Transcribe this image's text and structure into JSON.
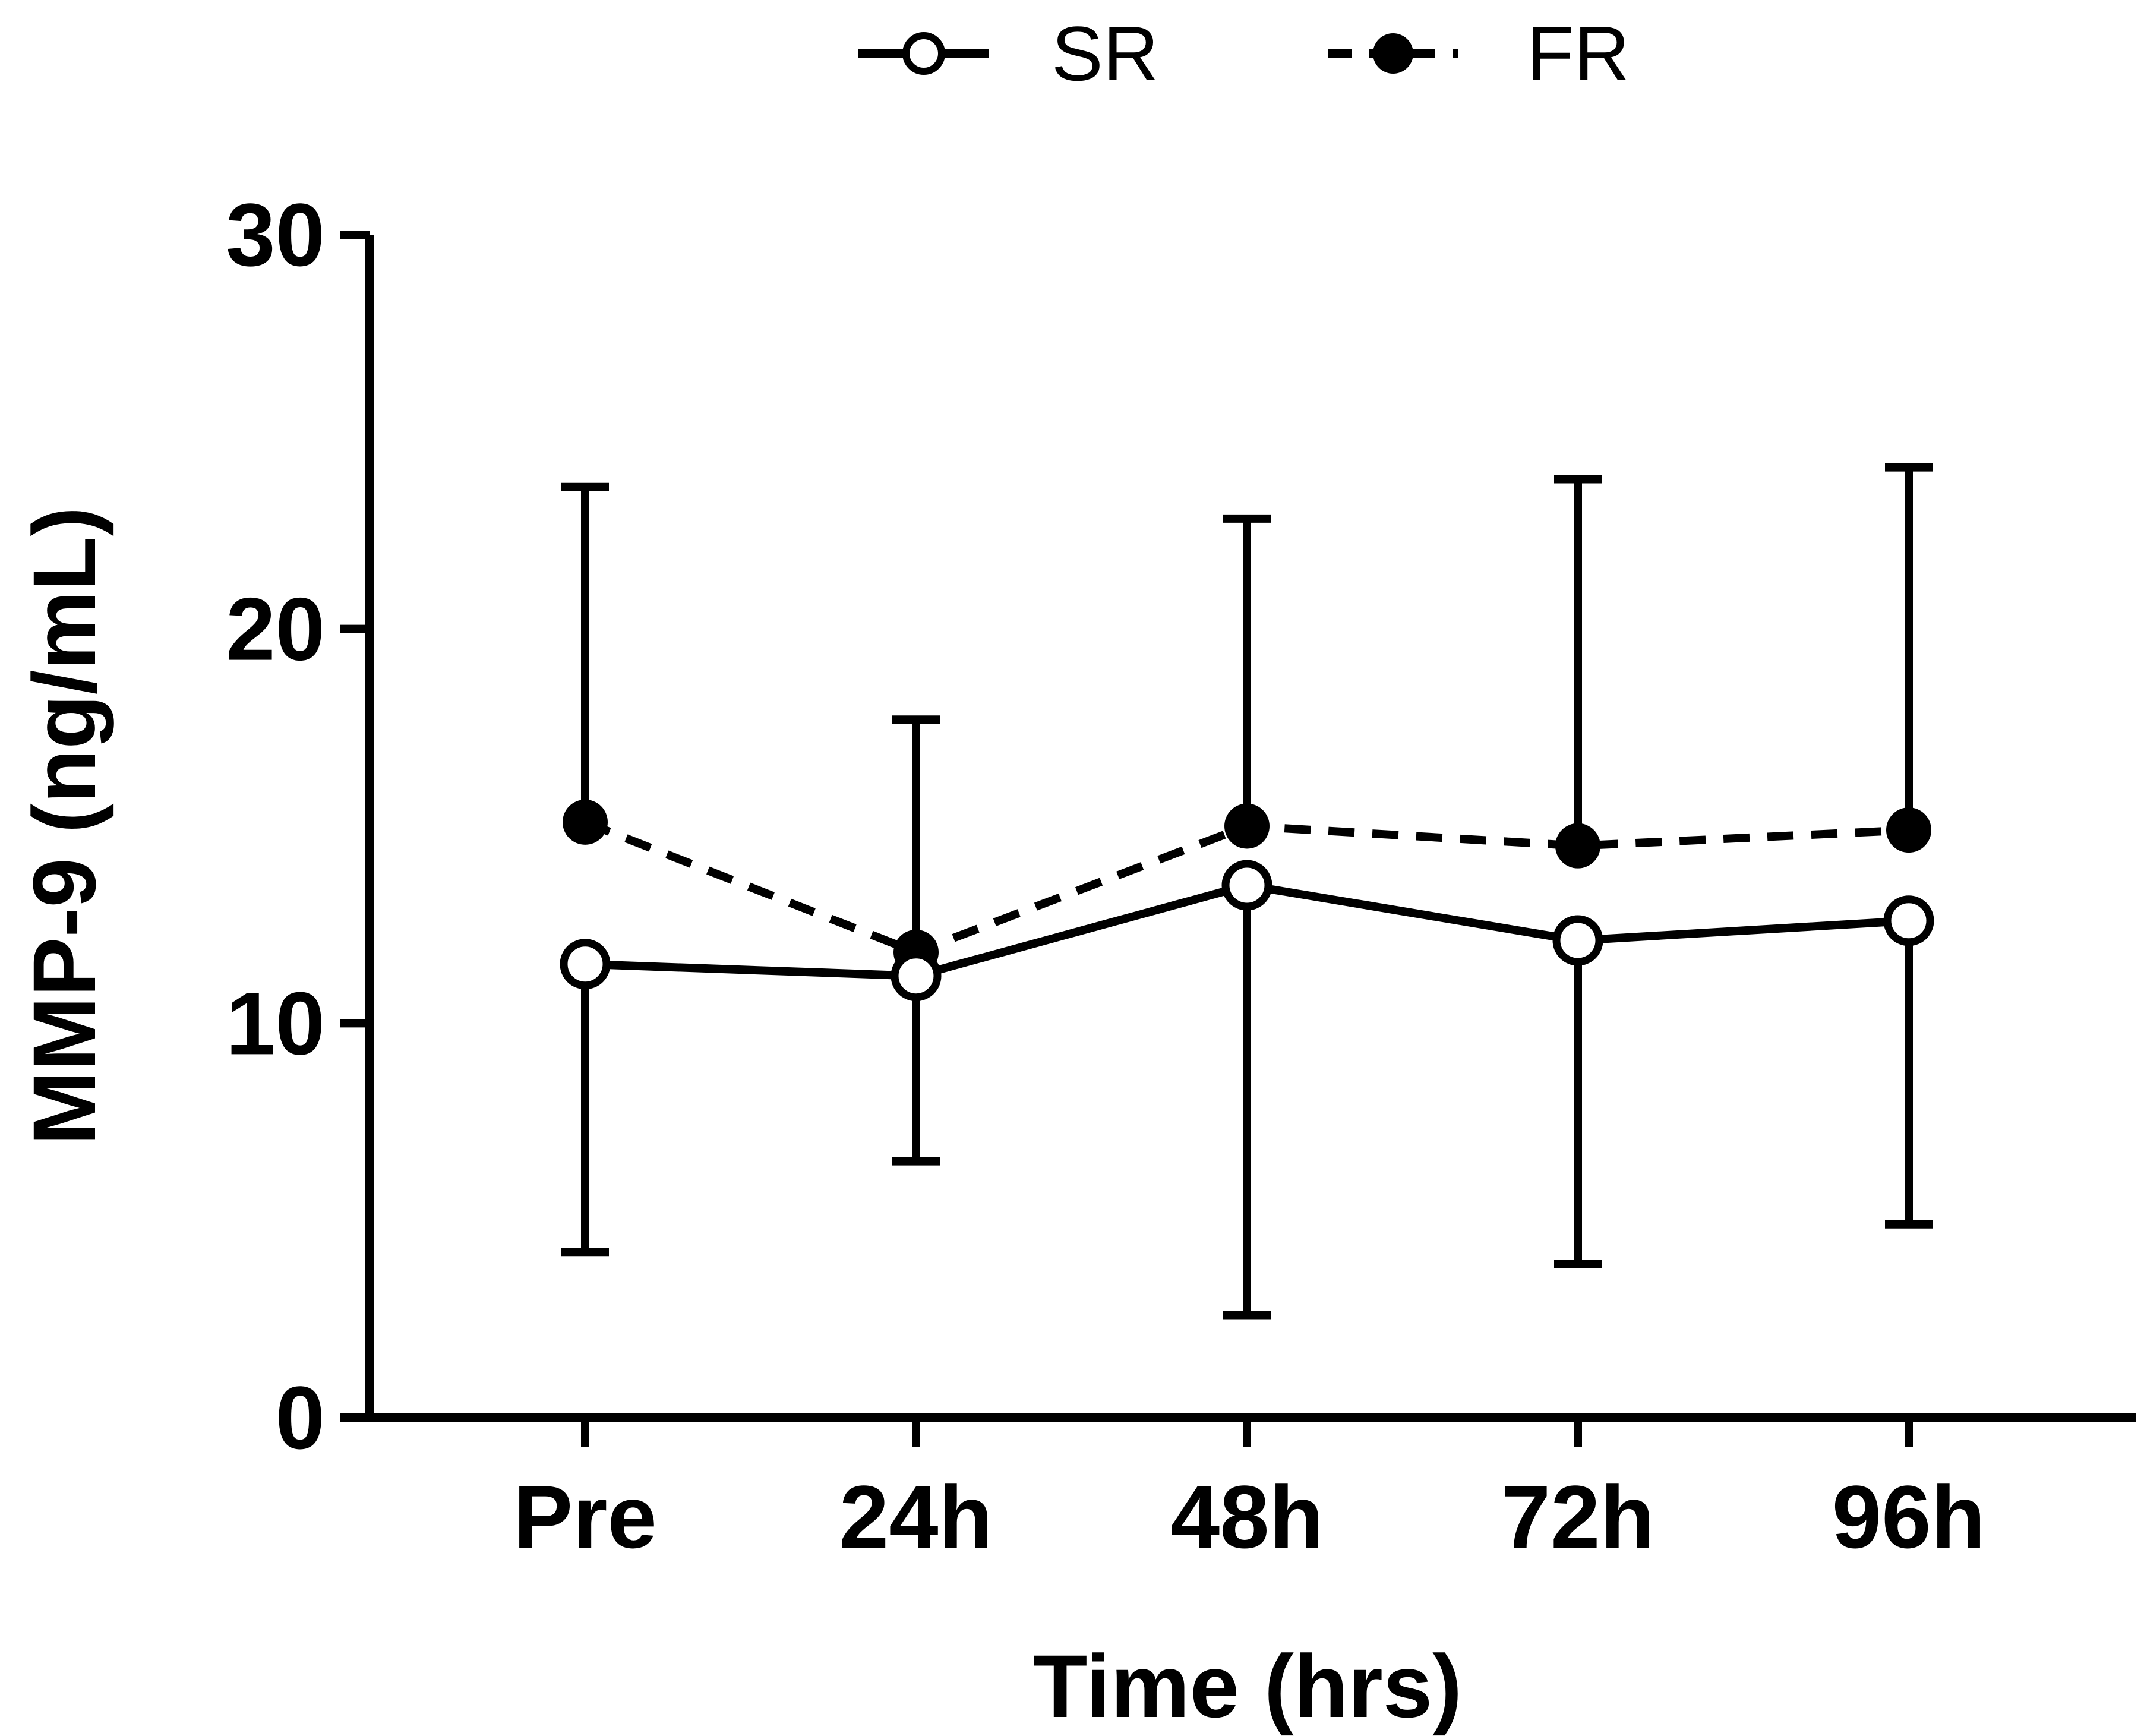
{
  "chart_data": {
    "type": "line",
    "title": "",
    "xlabel": "Time (hrs)",
    "ylabel": "MMP-9 (ng/mL)",
    "categories": [
      "Pre",
      "24h",
      "48h",
      "72h",
      "96h"
    ],
    "ylim": [
      0,
      30
    ],
    "yticks": [
      0,
      10,
      20,
      30
    ],
    "grid": false,
    "legend_position": "top-center",
    "error_bars": "one-sided (SR downward, FR upward)",
    "series": [
      {
        "name": "SR",
        "line_style": "solid",
        "marker": "open-circle",
        "values": [
          11.5,
          11.2,
          13.5,
          12.1,
          12.6
        ],
        "error_low": [
          4.2,
          6.5,
          2.6,
          3.9,
          4.9
        ]
      },
      {
        "name": "FR",
        "line_style": "dashed",
        "marker": "filled-circle",
        "values": [
          15.1,
          11.8,
          15.0,
          14.5,
          14.9
        ],
        "error_high": [
          23.6,
          17.7,
          22.8,
          23.8,
          24.1
        ]
      }
    ]
  }
}
